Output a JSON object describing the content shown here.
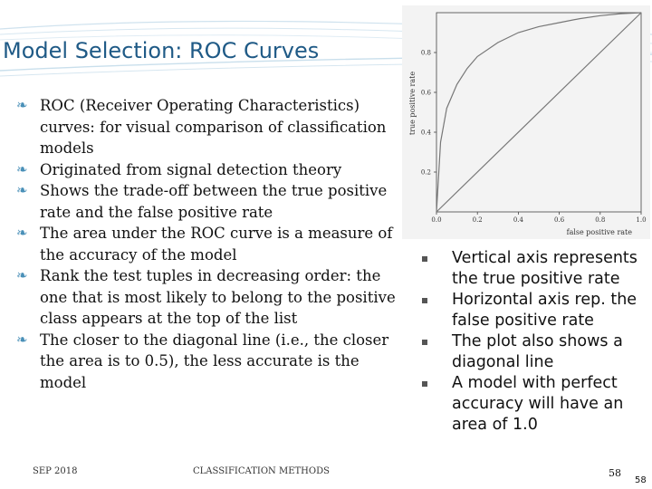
{
  "title": "Model Selection: ROC Curves",
  "left_bullets": [
    "ROC (Receiver Operating Characteristics) curves: for visual comparison of classification models",
    "Originated from signal detection theory",
    "Shows the trade-off between the true positive rate and the false positive rate",
    "The area under the ROC curve is a measure of the accuracy of the model",
    "Rank the test tuples in decreasing order: the one that is most likely to belong to the positive class appears at the top of the list",
    "The closer to the diagonal line (i.e., the closer the area is to 0.5), the less accurate is the model"
  ],
  "right_bullets": [
    "Vertical axis represents the true positive rate",
    "Horizontal axis rep. the false positive rate",
    "The plot also shows a diagonal line",
    "A model with perfect accuracy will have an area of 1.0"
  ],
  "footer": {
    "date": "SEP 2018",
    "course": "CLASSIFICATION METHODS",
    "page_small": "58",
    "page_corner": "58"
  },
  "chart_data": {
    "type": "line",
    "xlabel": "false positive rate",
    "ylabel": "true positive rate",
    "xlim": [
      0,
      1
    ],
    "ylim": [
      0,
      1
    ],
    "x_ticks": [
      "0.0",
      "0.2",
      "0.4",
      "0.6",
      "0.8",
      "1.0"
    ],
    "y_ticks": [
      "0.2",
      "0.4",
      "0.6",
      "0.8"
    ],
    "series": [
      {
        "x": [
          0,
          0.02,
          0.05,
          0.1,
          0.15,
          0.2,
          0.3,
          0.4,
          0.5,
          0.6,
          0.7,
          0.8,
          0.9,
          1.0
        ],
        "y": [
          0,
          0.35,
          0.52,
          0.64,
          0.72,
          0.78,
          0.85,
          0.9,
          0.93,
          0.95,
          0.97,
          0.985,
          0.995,
          1.0
        ]
      },
      {
        "x": [
          0,
          1
        ],
        "y": [
          0,
          1
        ]
      }
    ],
    "grid": false,
    "colors": {
      "curve": "#777777",
      "axis": "#444444",
      "background": "#f3f3f3"
    }
  }
}
